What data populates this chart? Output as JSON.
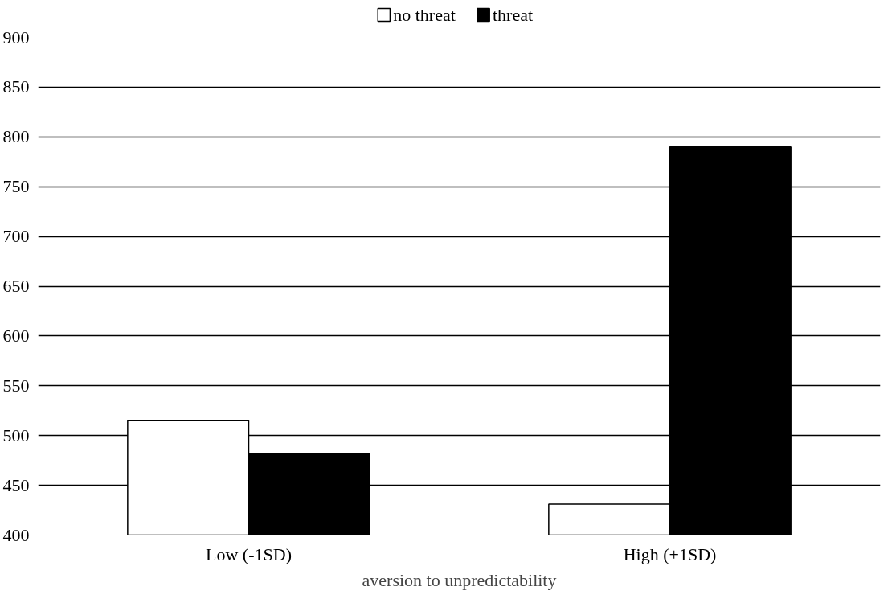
{
  "chart_data": {
    "type": "bar",
    "xlabel": "aversion to unpredictability",
    "categories": [
      "Low (-1SD)",
      "High (+1SD)"
    ],
    "series": [
      {
        "name": "no threat",
        "color": "#ffffff",
        "values": [
          515,
          431
        ]
      },
      {
        "name": "threat",
        "color": "#000000",
        "values": [
          482,
          790
        ]
      }
    ],
    "ylim": [
      400,
      900
    ],
    "yticks": [
      400,
      450,
      500,
      550,
      600,
      650,
      700,
      750,
      800,
      850,
      900
    ],
    "grid": "y",
    "legend": "top"
  }
}
